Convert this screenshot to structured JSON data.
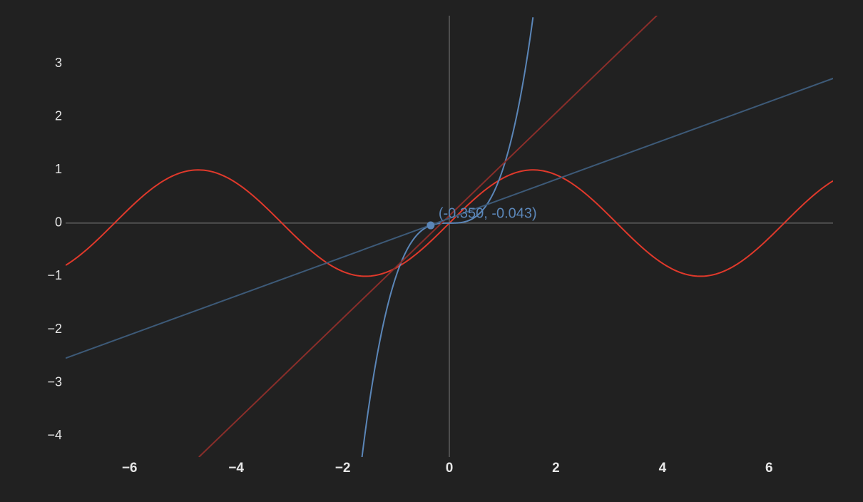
{
  "chart_data": {
    "type": "line",
    "title": "",
    "xlabel": "",
    "ylabel": "",
    "xlim": [
      -7.2,
      7.2
    ],
    "ylim": [
      -4.4,
      3.9
    ],
    "x_ticks": [
      -6,
      -4,
      -2,
      0,
      2,
      4,
      6
    ],
    "x_tick_labels": [
      "−6",
      "−4",
      "−2",
      "0",
      "2",
      "4",
      "6"
    ],
    "y_ticks": [
      3,
      2,
      1,
      0,
      -1,
      -2,
      -3,
      -4
    ],
    "y_tick_labels": [
      "3",
      "2",
      "1",
      "0",
      "−1",
      "−2",
      "−3",
      "−4"
    ],
    "grid": false,
    "legend": "none",
    "series": [
      {
        "id": "sine-curve",
        "color": "#e0392b",
        "x": [
          -7.2,
          -6.0,
          -4.71,
          -3.14,
          -1.57,
          0.0,
          1.57,
          3.14,
          4.71,
          6.28,
          7.2
        ],
        "y": [
          -0.79,
          0.28,
          1.0,
          0.0,
          -1.0,
          0.0,
          1.0,
          0.0,
          -1.0,
          0.0,
          0.79
        ]
      },
      {
        "id": "cubic-curve",
        "color": "#5b86b8",
        "x": [
          -1.65,
          -1.5,
          -1.2,
          -1.0,
          -0.7,
          -0.35,
          0.0,
          0.35,
          0.7,
          1.0,
          1.2,
          1.5,
          1.57
        ],
        "y": [
          -4.49,
          -3.38,
          -1.73,
          -1.0,
          -0.34,
          -0.043,
          0.0,
          0.043,
          0.34,
          1.0,
          1.73,
          3.38,
          3.87
        ]
      },
      {
        "id": "tangent-line-slope-1",
        "color": "#8a2e2a",
        "x": [
          -4.7,
          4.15
        ],
        "y": [
          -4.4,
          4.15
        ]
      },
      {
        "id": "tangent-line-slope-0-37",
        "color": "#3d5a78",
        "x": [
          -7.2,
          7.2
        ],
        "y": [
          -2.54,
          2.72
        ]
      }
    ],
    "highlight_point": {
      "x": -0.35,
      "y": -0.043,
      "label": "(-0.350, -0.043)",
      "color": "#5b86b8"
    }
  }
}
